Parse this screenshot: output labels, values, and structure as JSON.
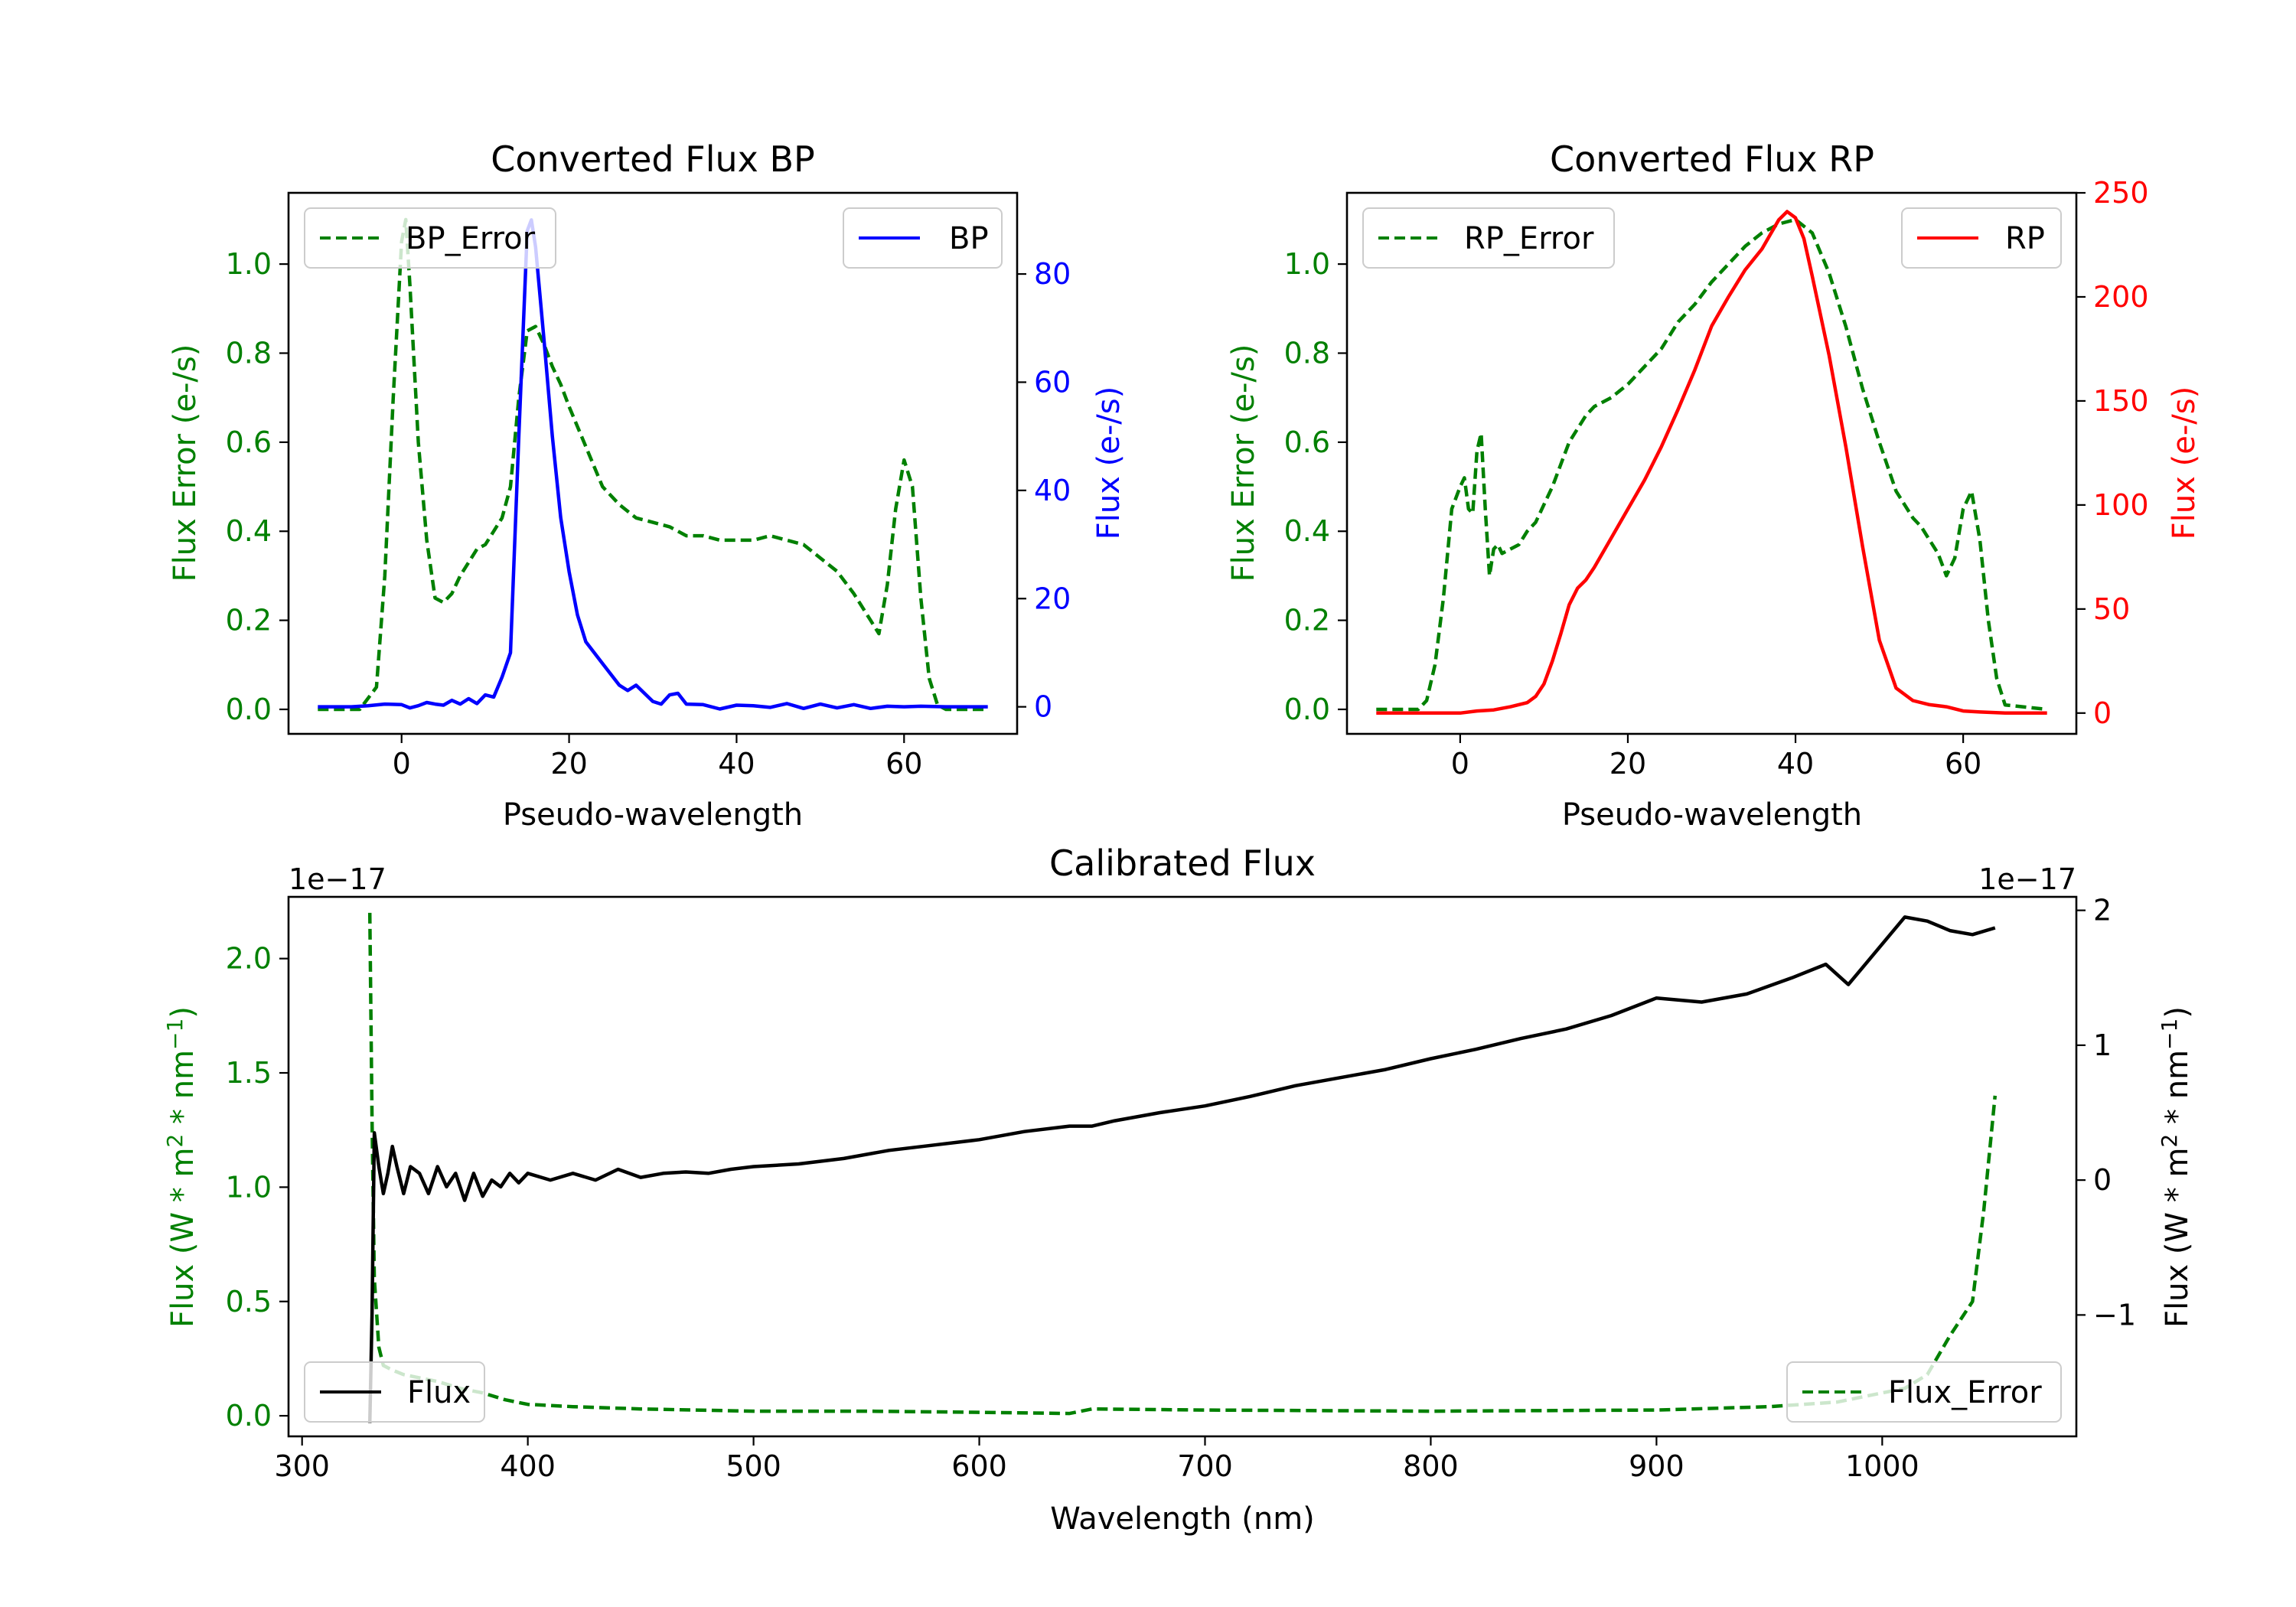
{
  "colors": {
    "error": "#008000",
    "bp": "#0000ff",
    "rp": "#ff0000",
    "flux": "#000000",
    "background": "#ffffff"
  },
  "chart_data": [
    {
      "type": "line",
      "title": "Converted Flux BP",
      "xlabel": "Pseudo-wavelength",
      "ylabel_left": "Flux Error (e-/s)",
      "ylabel_right": "Flux (e-/s)",
      "xlim": [
        -13.5,
        73.5
      ],
      "ylim_left": [
        -0.055,
        1.16
      ],
      "ylim_right": [
        -5,
        95
      ],
      "xticks": [
        0,
        20,
        40,
        60
      ],
      "xtick_labels": [
        "0",
        "20",
        "40",
        "60"
      ],
      "yticks_left": [
        0.0,
        0.2,
        0.4,
        0.6,
        0.8,
        1.0
      ],
      "ytick_labels_left": [
        "0.0",
        "0.2",
        "0.4",
        "0.6",
        "0.8",
        "1.0"
      ],
      "yticks_right": [
        0,
        20,
        40,
        60,
        80
      ],
      "ytick_labels_right": [
        "0",
        "20",
        "40",
        "60",
        "80"
      ],
      "legend_left": "BP_Error",
      "legend_right": "BP",
      "series": [
        {
          "name": "BP_Error",
          "axis": "left",
          "style": "dashed",
          "color": "#008000",
          "x": [
            -10,
            -5,
            -3,
            -2,
            -1,
            0,
            0.5,
            1,
            2,
            3,
            4,
            5,
            6,
            7,
            8,
            9,
            10,
            11,
            12,
            13,
            14,
            15,
            16,
            17,
            18,
            19,
            20,
            22,
            24,
            26,
            28,
            30,
            32,
            34,
            36,
            38,
            40,
            42,
            44,
            46,
            48,
            50,
            52,
            54,
            56,
            57,
            58,
            59,
            60,
            61,
            62,
            63,
            64,
            65,
            70
          ],
          "y": [
            0.0,
            0.0,
            0.05,
            0.3,
            0.7,
            1.05,
            1.1,
            0.95,
            0.6,
            0.38,
            0.25,
            0.24,
            0.26,
            0.3,
            0.33,
            0.36,
            0.37,
            0.4,
            0.43,
            0.5,
            0.7,
            0.85,
            0.86,
            0.82,
            0.77,
            0.73,
            0.68,
            0.59,
            0.5,
            0.46,
            0.43,
            0.42,
            0.41,
            0.39,
            0.39,
            0.38,
            0.38,
            0.38,
            0.39,
            0.38,
            0.37,
            0.34,
            0.31,
            0.26,
            0.2,
            0.17,
            0.28,
            0.45,
            0.56,
            0.5,
            0.25,
            0.07,
            0.01,
            0.0,
            0.0
          ]
        },
        {
          "name": "BP",
          "axis": "right",
          "style": "solid",
          "color": "#0000ff",
          "x": [
            -10,
            -6,
            -4,
            -2,
            0,
            1,
            2,
            3,
            4,
            5,
            6,
            7,
            8,
            9,
            10,
            11,
            12,
            13,
            14,
            15,
            15.5,
            16,
            17,
            18,
            19,
            20,
            21,
            22,
            24,
            26,
            27,
            28,
            30,
            31,
            32,
            33,
            34,
            36,
            38,
            40,
            42,
            44,
            46,
            48,
            50,
            52,
            54,
            56,
            58,
            60,
            62,
            65,
            70
          ],
          "y": [
            0,
            0,
            0.2,
            0.5,
            0.4,
            -0.2,
            0.2,
            0.8,
            0.5,
            0.3,
            1.2,
            0.5,
            1.5,
            0.6,
            2.2,
            1.8,
            5.5,
            10,
            50,
            88,
            90,
            85,
            68,
            50,
            35,
            25,
            17,
            12,
            8,
            4,
            3,
            4,
            1,
            0.5,
            2.2,
            2.5,
            0.5,
            0.4,
            -0.4,
            0.3,
            0.2,
            -0.1,
            0.6,
            -0.3,
            0.5,
            -0.2,
            0.4,
            -0.3,
            0.1,
            0,
            0.1,
            0,
            0
          ]
        }
      ]
    },
    {
      "type": "line",
      "title": "Converted Flux RP",
      "xlabel": "Pseudo-wavelength",
      "ylabel_left": "Flux Error (e-/s)",
      "ylabel_right": "Flux (e-/s)",
      "xlim": [
        -13.5,
        73.5
      ],
      "ylim_left": [
        -0.055,
        1.16
      ],
      "ylim_right": [
        -10,
        250
      ],
      "xticks": [
        0,
        20,
        40,
        60
      ],
      "xtick_labels": [
        "0",
        "20",
        "40",
        "60"
      ],
      "yticks_left": [
        0.0,
        0.2,
        0.4,
        0.6,
        0.8,
        1.0
      ],
      "ytick_labels_left": [
        "0.0",
        "0.2",
        "0.4",
        "0.6",
        "0.8",
        "1.0"
      ],
      "yticks_right": [
        0,
        50,
        100,
        150,
        200,
        250
      ],
      "ytick_labels_right": [
        "0",
        "50",
        "100",
        "150",
        "200",
        "250"
      ],
      "legend_left": "RP_Error",
      "legend_right": "RP",
      "series": [
        {
          "name": "RP_Error",
          "axis": "left",
          "style": "dashed",
          "color": "#008000",
          "x": [
            -10,
            -5,
            -4,
            -3,
            -2,
            -1,
            0,
            0.5,
            1,
            1.5,
            2,
            2.5,
            3,
            3.5,
            4,
            4.5,
            5,
            6,
            7,
            8,
            9,
            10,
            11,
            12,
            13,
            14,
            15,
            16,
            18,
            20,
            22,
            24,
            26,
            28,
            30,
            32,
            34,
            36,
            38,
            40,
            42,
            44,
            46,
            48,
            50,
            52,
            54,
            55,
            56,
            57,
            58,
            59,
            60,
            61,
            62,
            63,
            64,
            65,
            70
          ],
          "y": [
            0.0,
            0.0,
            0.02,
            0.1,
            0.25,
            0.45,
            0.5,
            0.52,
            0.45,
            0.44,
            0.58,
            0.62,
            0.45,
            0.3,
            0.36,
            0.37,
            0.35,
            0.36,
            0.37,
            0.4,
            0.42,
            0.46,
            0.5,
            0.55,
            0.6,
            0.63,
            0.66,
            0.68,
            0.7,
            0.73,
            0.77,
            0.81,
            0.87,
            0.91,
            0.96,
            1.0,
            1.04,
            1.07,
            1.09,
            1.1,
            1.07,
            0.98,
            0.86,
            0.72,
            0.6,
            0.49,
            0.43,
            0.41,
            0.38,
            0.35,
            0.3,
            0.34,
            0.45,
            0.49,
            0.38,
            0.2,
            0.07,
            0.01,
            0.0
          ]
        },
        {
          "name": "RP",
          "axis": "right",
          "style": "solid",
          "color": "#ff0000",
          "x": [
            -10,
            -5,
            0,
            2,
            4,
            6,
            8,
            9,
            10,
            11,
            12,
            13,
            14,
            15,
            16,
            18,
            20,
            22,
            24,
            26,
            28,
            30,
            32,
            34,
            36,
            38,
            39,
            40,
            41,
            42,
            44,
            46,
            48,
            50,
            52,
            54,
            56,
            58,
            60,
            62,
            65,
            70
          ],
          "y": [
            0,
            0,
            0,
            1,
            1.5,
            3,
            5,
            8,
            14,
            25,
            38,
            52,
            60,
            64,
            70,
            84,
            98,
            112,
            128,
            146,
            165,
            186,
            200,
            213,
            223,
            237,
            241,
            238,
            228,
            210,
            172,
            128,
            80,
            35,
            12,
            6,
            4,
            3,
            1,
            0.5,
            0,
            0
          ]
        }
      ]
    },
    {
      "type": "line",
      "title": "Calibrated Flux",
      "xlabel": "Wavelength (nm)",
      "ylabel_left": "Flux (W * m$^2$ * nm$^{-1}$)",
      "ylabel_left_parts": [
        "Flux (W * m",
        "2",
        " * nm",
        "−1",
        ")"
      ],
      "ylabel_right": "Flux (W * m$^2$ * nm$^{-1}$)",
      "ylabel_right_parts": [
        "Flux (W * m",
        "2",
        " * nm",
        "−1",
        ")"
      ],
      "offset_left": "1e−17",
      "offset_right": "1e−17",
      "xlim": [
        294,
        1086
      ],
      "ylim_left": [
        -0.09,
        2.27
      ],
      "ylim_right": [
        -1.9,
        2.1
      ],
      "xticks": [
        300,
        400,
        500,
        600,
        700,
        800,
        900,
        1000
      ],
      "xtick_labels": [
        "300",
        "400",
        "500",
        "600",
        "700",
        "800",
        "900",
        "1000"
      ],
      "yticks_left": [
        0.0,
        0.5,
        1.0,
        1.5,
        2.0
      ],
      "ytick_labels_left": [
        "0.0",
        "0.5",
        "1.0",
        "1.5",
        "2.0"
      ],
      "yticks_right": [
        -1,
        0,
        1,
        2
      ],
      "ytick_labels_right": [
        "−1",
        "0",
        "1",
        "2"
      ],
      "legend_left": "Flux",
      "legend_right": "Flux_Error",
      "series": [
        {
          "name": "Flux_Error",
          "axis": "left",
          "style": "dashed",
          "color": "#008000",
          "x": [
            330,
            331,
            332,
            334,
            336,
            340,
            345,
            350,
            360,
            370,
            380,
            390,
            400,
            420,
            450,
            500,
            550,
            600,
            640,
            650,
            700,
            800,
            900,
            950,
            980,
            1000,
            1010,
            1020,
            1030,
            1040,
            1045,
            1050
          ],
          "y": [
            2.2,
            1.3,
            0.6,
            0.3,
            0.22,
            0.2,
            0.18,
            0.17,
            0.15,
            0.12,
            0.1,
            0.07,
            0.05,
            0.04,
            0.03,
            0.02,
            0.02,
            0.015,
            0.01,
            0.03,
            0.025,
            0.02,
            0.025,
            0.04,
            0.06,
            0.1,
            0.12,
            0.18,
            0.35,
            0.5,
            0.9,
            1.4
          ]
        },
        {
          "name": "Flux",
          "axis": "right",
          "style": "solid",
          "color": "#000000",
          "x": [
            330,
            331,
            332,
            334,
            336,
            338,
            340,
            342,
            345,
            348,
            352,
            356,
            360,
            364,
            368,
            372,
            376,
            380,
            384,
            388,
            392,
            396,
            400,
            410,
            420,
            430,
            440,
            450,
            460,
            470,
            480,
            490,
            500,
            520,
            540,
            560,
            580,
            600,
            620,
            640,
            650,
            660,
            680,
            700,
            720,
            740,
            760,
            780,
            800,
            820,
            840,
            860,
            880,
            900,
            920,
            940,
            960,
            975,
            985,
            995,
            1010,
            1020,
            1030,
            1040,
            1050
          ],
          "y": [
            -1.8,
            -1.0,
            0.35,
            0.1,
            -0.1,
            0.05,
            0.25,
            0.1,
            -0.1,
            0.1,
            0.05,
            -0.1,
            0.1,
            -0.05,
            0.05,
            -0.15,
            0.05,
            -0.12,
            0.0,
            -0.05,
            0.05,
            -0.02,
            0.05,
            0.0,
            0.05,
            0.0,
            0.08,
            0.02,
            0.05,
            0.06,
            0.05,
            0.08,
            0.1,
            0.12,
            0.16,
            0.22,
            0.26,
            0.3,
            0.36,
            0.4,
            0.4,
            0.44,
            0.5,
            0.55,
            0.62,
            0.7,
            0.76,
            0.82,
            0.9,
            0.97,
            1.05,
            1.12,
            1.22,
            1.35,
            1.32,
            1.38,
            1.5,
            1.6,
            1.45,
            1.65,
            1.95,
            1.92,
            1.85,
            1.82,
            1.87
          ]
        }
      ]
    }
  ]
}
